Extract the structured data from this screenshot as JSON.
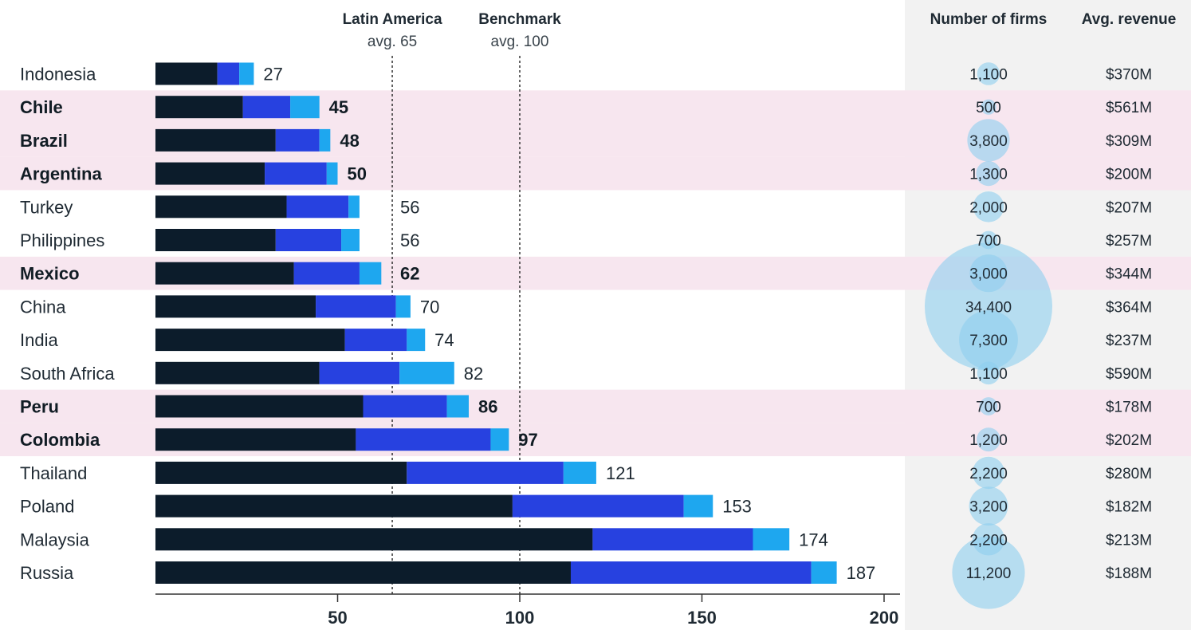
{
  "chart_data": {
    "type": "bar",
    "orientation": "horizontal",
    "stacked": true,
    "categories": [
      "Indonesia",
      "Chile",
      "Brazil",
      "Argentina",
      "Turkey",
      "Philippines",
      "Mexico",
      "China",
      "India",
      "South Africa",
      "Peru",
      "Colombia",
      "Thailand",
      "Poland",
      "Malaysia",
      "Russia"
    ],
    "highlighted": [
      "Chile",
      "Brazil",
      "Argentina",
      "Mexico",
      "Peru",
      "Colombia"
    ],
    "totals": [
      27,
      45,
      48,
      50,
      56,
      56,
      62,
      70,
      74,
      82,
      86,
      97,
      121,
      153,
      174,
      187
    ],
    "series": [
      {
        "values": [
          17,
          24,
          33,
          30,
          36,
          33,
          38,
          44,
          52,
          45,
          57,
          55,
          69,
          98,
          120,
          114
        ]
      },
      {
        "values": [
          6,
          13,
          12,
          17,
          17,
          18,
          18,
          22,
          17,
          22,
          23,
          37,
          43,
          47,
          44,
          66
        ]
      },
      {
        "values": [
          4,
          8,
          3,
          3,
          3,
          5,
          6,
          4,
          5,
          15,
          6,
          5,
          9,
          8,
          10,
          7
        ]
      }
    ],
    "xlim": [
      0,
      200
    ],
    "xticks": [
      50,
      100,
      150,
      200
    ],
    "xlabel": "",
    "grid": false,
    "colors": [
      "#0c1c2b",
      "#2741e0",
      "#1ea7ef"
    ],
    "highlight_color": "#f7e6ef",
    "reference_lines": [
      {
        "label": "Latin America",
        "sublabel": "avg. 65",
        "value": 65
      },
      {
        "label": "Benchmark",
        "sublabel": "avg. 100",
        "value": 100
      }
    ],
    "table_columns": [
      "Number of firms",
      "Avg. revenue"
    ],
    "number_of_firms": [
      "1,100",
      "500",
      "3,800",
      "1,300",
      "2,000",
      "700",
      "3,000",
      "34,400",
      "7,300",
      "1,100",
      "700",
      "1,200",
      "2,200",
      "3,200",
      "2,200",
      "11,200"
    ],
    "number_of_firms_values": [
      1100,
      500,
      3800,
      1300,
      2000,
      700,
      3000,
      34400,
      7300,
      1100,
      700,
      1200,
      2200,
      3200,
      2200,
      11200
    ],
    "avg_revenue": [
      "$370M",
      "$561M",
      "$309M",
      "$200M",
      "$207M",
      "$257M",
      "$344M",
      "$364M",
      "$237M",
      "$590M",
      "$178M",
      "$202M",
      "$280M",
      "$182M",
      "$213M",
      "$188M"
    ],
    "bubble_color": "#8ecfee",
    "table_bg": "#f2f2f2"
  }
}
